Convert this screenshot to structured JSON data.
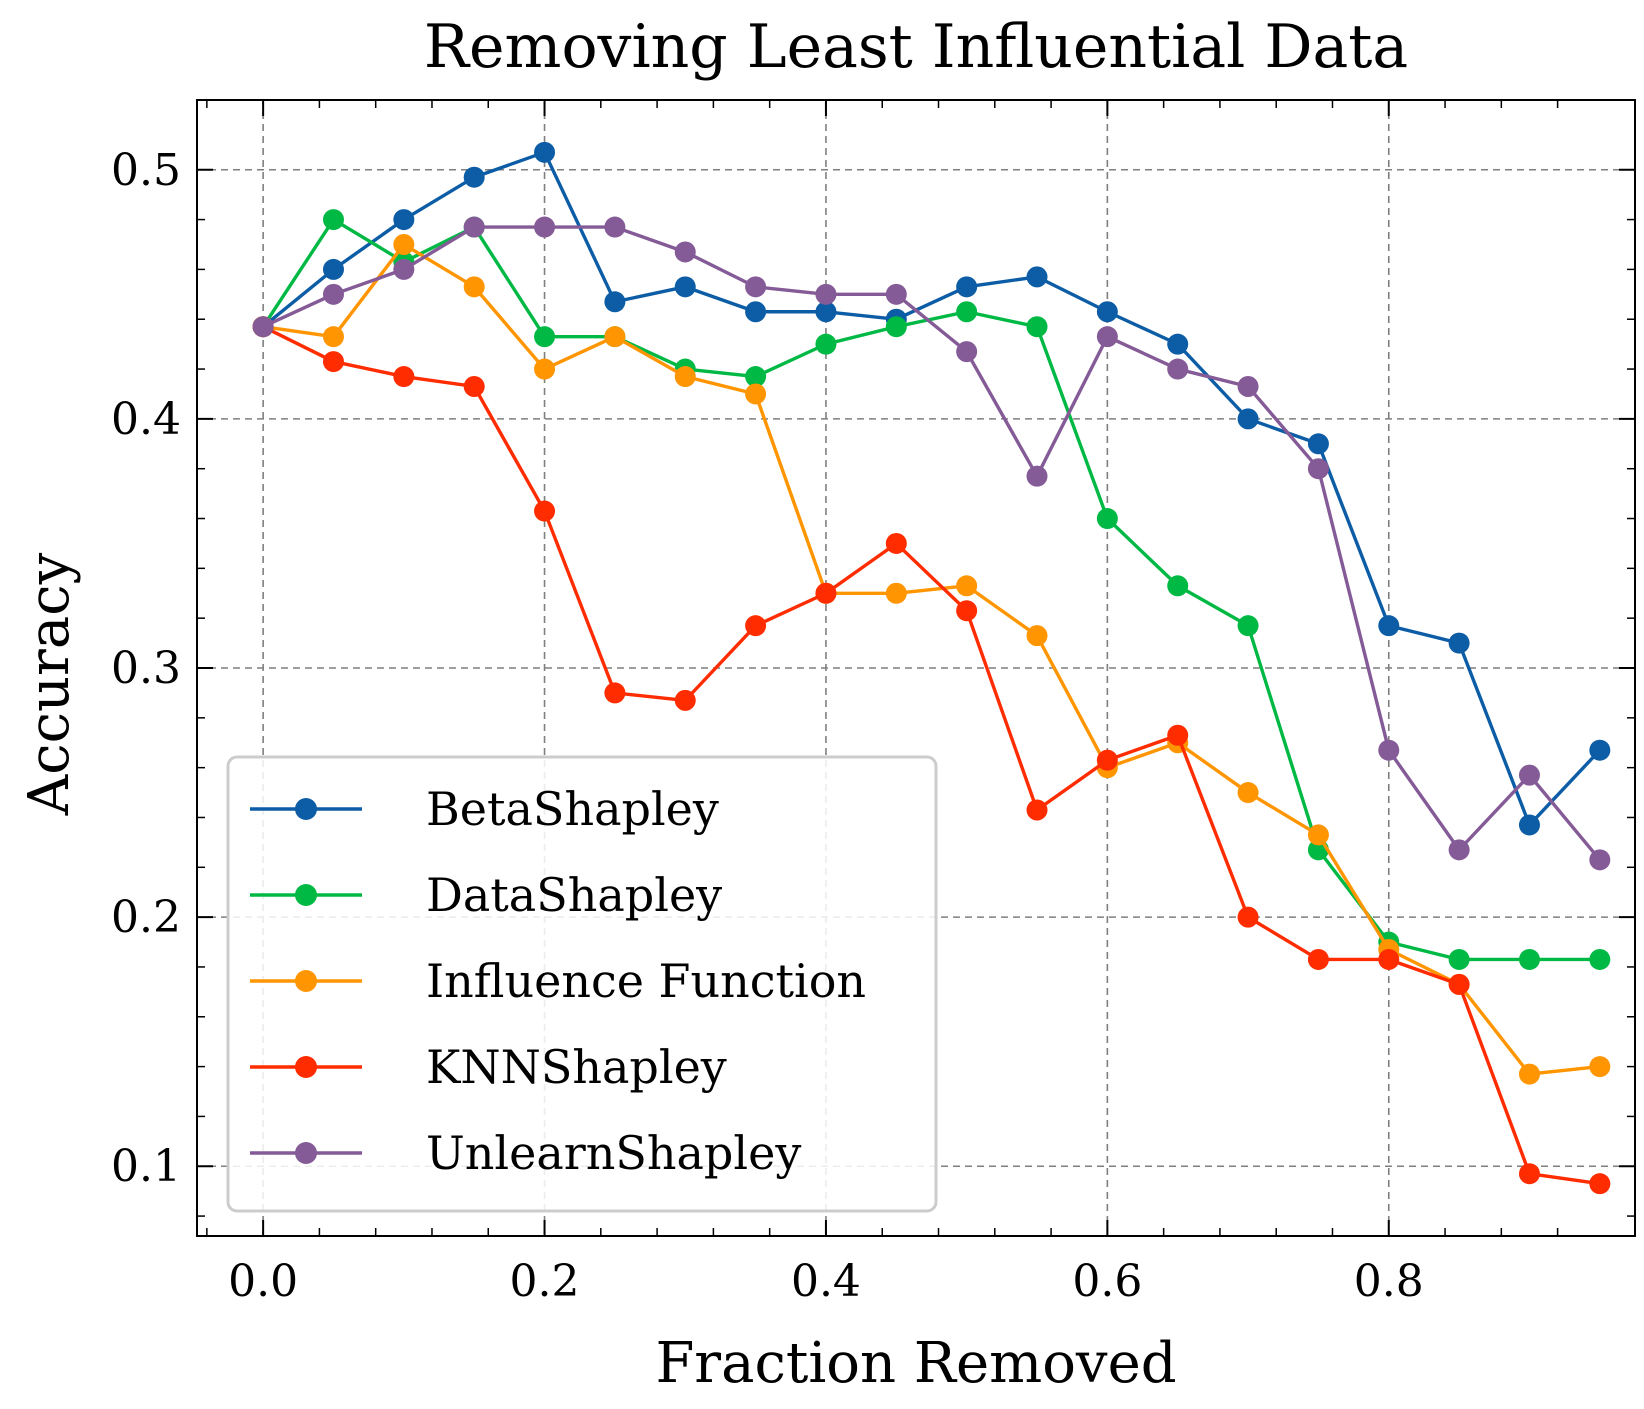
{
  "chart_data": {
    "type": "line",
    "title": "Removing Least Influential Data",
    "xlabel": "Fraction Removed",
    "ylabel": "Accuracy",
    "xlim": [
      -0.047,
      0.975
    ],
    "ylim": [
      0.072,
      0.528
    ],
    "xticks": [
      0.0,
      0.2,
      0.4,
      0.6,
      0.8
    ],
    "xtick_labels": [
      "0.0",
      "0.2",
      "0.4",
      "0.6",
      "0.8"
    ],
    "yticks": [
      0.1,
      0.2,
      0.3,
      0.4,
      0.5
    ],
    "ytick_labels": [
      "0.1",
      "0.2",
      "0.3",
      "0.4",
      "0.5"
    ],
    "grid": true,
    "legend_position": "lower-left",
    "x": [
      0.0,
      0.05,
      0.1,
      0.15,
      0.2,
      0.25,
      0.3,
      0.35,
      0.4,
      0.45,
      0.5,
      0.55,
      0.6,
      0.65,
      0.7,
      0.75,
      0.8,
      0.85,
      0.9,
      0.95
    ],
    "series": [
      {
        "name": "BetaShapley",
        "color": "#0c5da5",
        "values": [
          0.437,
          0.46,
          0.48,
          0.497,
          0.507,
          0.447,
          0.453,
          0.443,
          0.443,
          0.44,
          0.453,
          0.457,
          0.443,
          0.43,
          0.4,
          0.39,
          0.317,
          0.31,
          0.237,
          0.267
        ]
      },
      {
        "name": "DataShapley",
        "color": "#00b945",
        "values": [
          0.437,
          0.48,
          0.463,
          0.477,
          0.433,
          0.433,
          0.42,
          0.417,
          0.43,
          0.437,
          0.443,
          0.437,
          0.36,
          0.333,
          0.317,
          0.227,
          0.19,
          0.183,
          0.183,
          0.183
        ]
      },
      {
        "name": "Influence Function",
        "color": "#ff9500",
        "values": [
          0.437,
          0.433,
          0.47,
          0.453,
          0.42,
          0.433,
          0.417,
          0.41,
          0.33,
          0.33,
          0.333,
          0.313,
          0.26,
          0.27,
          0.25,
          0.233,
          0.187,
          0.173,
          0.137,
          0.14
        ]
      },
      {
        "name": "KNNShapley",
        "color": "#ff2c00",
        "values": [
          0.437,
          0.423,
          0.417,
          0.413,
          0.363,
          0.29,
          0.287,
          0.317,
          0.33,
          0.35,
          0.323,
          0.243,
          0.263,
          0.273,
          0.2,
          0.183,
          0.183,
          0.173,
          0.097,
          0.093
        ]
      },
      {
        "name": "UnlearnShapley",
        "color": "#845b97",
        "values": [
          0.437,
          0.45,
          0.46,
          0.477,
          0.477,
          0.477,
          0.467,
          0.453,
          0.45,
          0.45,
          0.427,
          0.377,
          0.433,
          0.42,
          0.413,
          0.38,
          0.267,
          0.227,
          0.257,
          0.223
        ]
      }
    ]
  }
}
